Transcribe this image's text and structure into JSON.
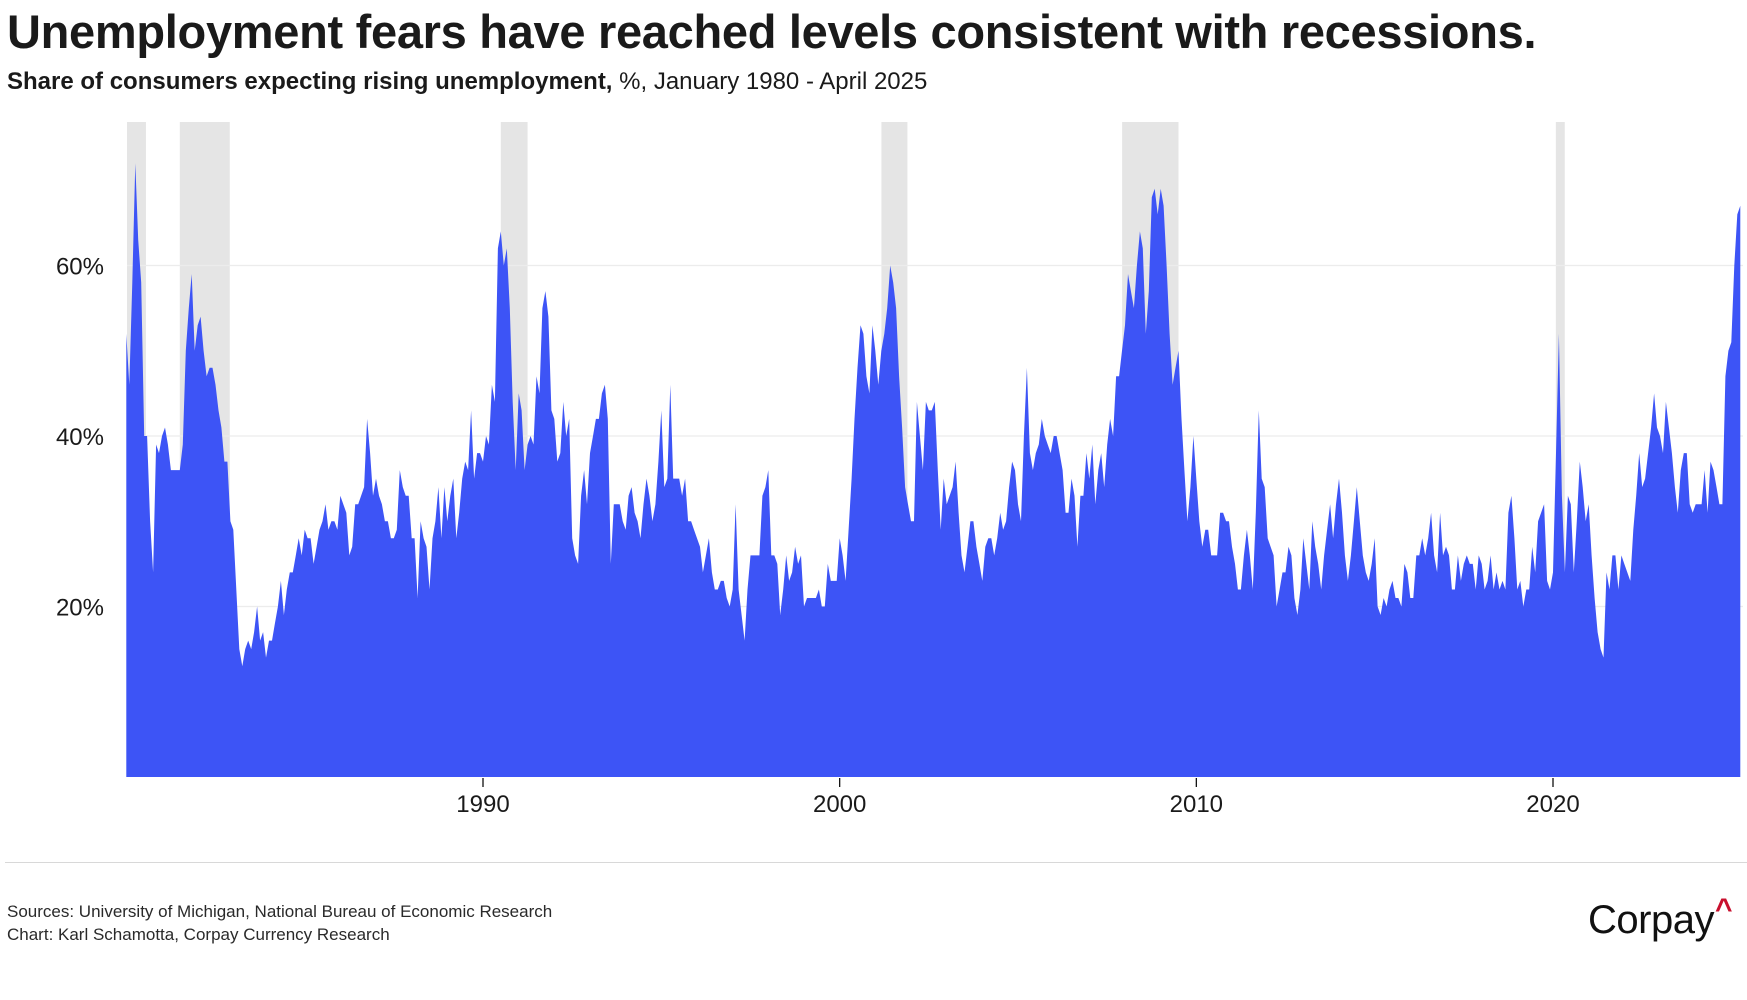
{
  "header": {
    "title": "Unemployment fears have reached levels consistent with recessions.",
    "subtitle_strong": "Share of consumers expecting rising unemployment,",
    "subtitle_rest": " %, January 1980 - April 2025"
  },
  "footer": {
    "sources": "Sources: University of Michigan, National Bureau of Economic Research",
    "credit": "Chart: Karl Schamotta, Corpay Currency Research",
    "logo_text": "Corpay",
    "logo_caret": "^"
  },
  "colors": {
    "area": "#3d54f6",
    "recession": "#e5e5e5",
    "grid": "#ececec",
    "logo_accent": "#c8102e"
  },
  "chart_data": {
    "type": "area",
    "title": "Unemployment fears have reached levels consistent with recessions.",
    "subtitle": "Share of consumers expecting rising unemployment, %, January 1980 - April 2025",
    "xlabel": "",
    "ylabel": "",
    "xlim": [
      1980.0,
      2025.3
    ],
    "ylim": [
      0,
      77
    ],
    "grid": true,
    "y_ticks": [
      20,
      40,
      60
    ],
    "y_tick_labels": [
      "20%",
      "40%",
      "60%"
    ],
    "x_ticks": [
      1990,
      2000,
      2010,
      2020
    ],
    "x_tick_labels": [
      "1990",
      "2000",
      "2010",
      "2020"
    ],
    "recessions": [
      {
        "start": 1980.0,
        "end": 1980.55
      },
      {
        "start": 1981.5,
        "end": 1982.9
      },
      {
        "start": 1990.5,
        "end": 1991.25
      },
      {
        "start": 2001.17,
        "end": 2001.9
      },
      {
        "start": 2007.92,
        "end": 2009.5
      },
      {
        "start": 2020.08,
        "end": 2020.33
      }
    ],
    "series": [
      {
        "name": "Share of consumers expecting rising unemployment (%)",
        "start_year": 1980,
        "start_month": 1,
        "frequency": "monthly",
        "values": [
          52,
          46,
          58,
          72,
          63,
          58,
          40,
          40,
          30,
          24,
          39,
          38,
          40,
          41,
          39,
          36,
          36,
          36,
          36,
          39,
          50,
          55,
          59,
          50,
          53,
          54,
          50,
          47,
          48,
          48,
          46,
          43,
          41,
          37,
          37,
          30,
          29,
          22,
          15,
          13,
          15,
          16,
          15,
          17,
          20,
          16,
          17,
          14,
          16,
          16,
          18,
          20,
          23,
          19,
          22,
          24,
          24,
          26,
          28,
          26,
          29,
          28,
          28,
          25,
          27,
          29,
          30,
          32,
          29,
          30,
          30,
          29,
          33,
          32,
          31,
          26,
          27,
          32,
          32,
          33,
          34,
          42,
          38,
          33,
          35,
          33,
          32,
          30,
          30,
          28,
          28,
          29,
          36,
          34,
          33,
          33,
          28,
          28,
          21,
          30,
          28,
          27,
          22,
          28,
          30,
          34,
          28,
          34,
          30,
          33,
          35,
          28,
          31,
          35,
          37,
          36,
          43,
          35,
          38,
          38,
          37,
          40,
          39,
          46,
          44,
          62,
          64,
          60,
          62,
          55,
          44,
          36,
          45,
          43,
          36,
          39,
          40,
          39,
          47,
          45,
          55,
          57,
          54,
          43,
          42,
          37,
          38,
          44,
          40,
          42,
          28,
          26,
          25,
          33,
          36,
          32,
          38,
          40,
          42,
          42,
          45,
          46,
          42,
          25,
          32,
          32,
          32,
          30,
          29,
          33,
          34,
          31,
          30,
          28,
          32,
          35,
          33,
          30,
          32,
          37,
          43,
          34,
          35,
          46,
          35,
          35,
          35,
          33,
          35,
          30,
          30,
          29,
          28,
          27,
          24,
          26,
          28,
          24,
          22,
          22,
          23,
          23,
          21,
          20,
          22,
          32,
          22,
          19,
          16,
          22,
          26,
          26,
          26,
          26,
          33,
          34,
          36,
          26,
          26,
          25,
          19,
          22,
          26,
          23,
          24,
          27,
          25,
          26,
          20,
          21,
          21,
          21,
          21,
          22,
          20,
          20,
          25,
          23,
          23,
          23,
          28,
          26,
          23,
          29,
          35,
          42,
          48,
          53,
          52,
          47,
          45,
          53,
          50,
          46,
          50,
          52,
          55,
          60,
          58,
          55,
          47,
          41,
          34,
          32,
          30,
          30,
          44,
          40,
          36,
          44,
          43,
          43,
          44,
          36,
          29,
          35,
          32,
          33,
          34,
          37,
          31,
          26,
          24,
          27,
          30,
          30,
          27,
          25,
          23,
          27,
          28,
          28,
          26,
          28,
          31,
          29,
          30,
          34,
          37,
          36,
          32,
          30,
          40,
          48,
          38,
          36,
          38,
          39,
          42,
          40,
          39,
          38,
          40,
          40,
          38,
          36,
          31,
          31,
          35,
          33,
          27,
          33,
          33,
          38,
          35,
          39,
          32,
          36,
          38,
          34,
          39,
          42,
          40,
          47,
          47,
          50,
          53,
          59,
          57,
          55,
          60,
          64,
          62,
          52,
          57,
          68,
          69,
          66,
          69,
          67,
          60,
          52,
          46,
          48,
          50,
          42,
          36,
          30,
          34,
          40,
          35,
          30,
          27,
          29,
          29,
          26,
          26,
          26,
          31,
          31,
          30,
          30,
          27,
          25,
          22,
          22,
          26,
          29,
          26,
          22,
          31,
          43,
          35,
          34,
          28,
          27,
          26,
          20,
          22,
          24,
          24,
          27,
          26,
          21,
          19,
          22,
          28,
          25,
          22,
          30,
          27,
          25,
          22,
          26,
          29,
          32,
          28,
          32,
          35,
          31,
          26,
          23,
          26,
          30,
          34,
          30,
          26,
          24,
          23,
          25,
          28,
          20,
          19,
          21,
          20,
          22,
          23,
          21,
          21,
          20,
          25,
          24,
          21,
          21,
          26,
          26,
          28,
          26,
          28,
          31,
          26,
          24,
          31,
          26,
          27,
          26,
          22,
          22,
          26,
          23,
          25,
          26,
          25,
          25,
          22,
          26,
          25,
          22,
          23,
          26,
          22,
          24,
          22,
          23,
          22,
          31,
          33,
          28,
          22,
          23,
          20,
          22,
          22,
          27,
          24,
          30,
          31,
          32,
          23,
          22,
          24,
          38,
          52,
          33,
          24,
          33,
          32,
          24,
          30,
          37,
          34,
          30,
          32,
          26,
          21,
          17,
          15,
          14,
          24,
          22,
          26,
          26,
          22,
          26,
          25,
          24,
          23,
          29,
          33,
          38,
          34,
          35,
          38,
          41,
          45,
          41,
          40,
          38,
          44,
          41,
          38,
          34,
          31,
          36,
          38,
          38,
          32,
          31,
          32,
          32,
          32,
          36,
          31,
          37,
          36,
          34,
          32,
          32,
          47,
          50,
          51,
          60,
          66,
          67
        ]
      }
    ]
  }
}
